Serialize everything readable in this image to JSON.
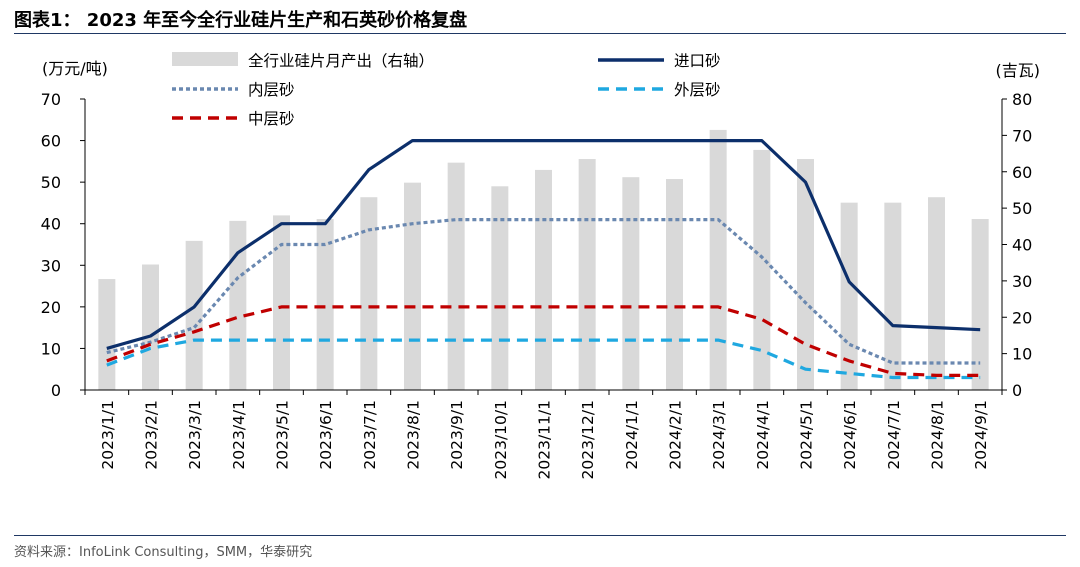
{
  "figure": {
    "title": "图表1： 2023 年至今全行业硅片生产和石英砂价格复盘",
    "source": "资料来源：InfoLink Consulting，SMM，华泰研究"
  },
  "chart_data": {
    "type": "bar+line",
    "categories": [
      "2023/1/1",
      "2023/2/1",
      "2023/3/1",
      "2023/4/1",
      "2023/5/1",
      "2023/6/1",
      "2023/7/1",
      "2023/8/1",
      "2023/9/1",
      "2023/10/1",
      "2023/11/1",
      "2023/12/1",
      "2024/1/1",
      "2024/2/1",
      "2024/3/1",
      "2024/4/1",
      "2024/5/1",
      "2024/6/1",
      "2024/7/1",
      "2024/8/1",
      "2024/9/1"
    ],
    "left_axis": {
      "label": "(万元/吨)",
      "ylim": [
        0,
        70
      ],
      "ticks": [
        0,
        10,
        20,
        30,
        40,
        50,
        60,
        70
      ]
    },
    "right_axis": {
      "label": "(吉瓦)",
      "ylim": [
        0,
        80
      ],
      "ticks": [
        0,
        10,
        20,
        30,
        40,
        50,
        60,
        70,
        80
      ]
    },
    "series": [
      {
        "name": "全行业硅片月产出（右轴）",
        "kind": "bar",
        "axis": "right",
        "color": "#d9d9d9",
        "values": [
          30.5,
          34.5,
          41,
          46.5,
          48,
          47,
          53,
          57,
          62.5,
          56,
          60.5,
          63.5,
          58.5,
          58,
          71.5,
          66,
          63.5,
          51.5,
          51.5,
          53,
          47
        ]
      },
      {
        "name": "进口砂",
        "kind": "line",
        "style": "solid",
        "axis": "left",
        "color": "#0c2f6b",
        "values": [
          10,
          13,
          20,
          33,
          40,
          40,
          53,
          60,
          60,
          60,
          60,
          60,
          60,
          60,
          60,
          60,
          50,
          26,
          15.5,
          15,
          14.5
        ]
      },
      {
        "name": "内层砂",
        "kind": "line",
        "style": "dotted",
        "axis": "left",
        "color": "#6a88b0",
        "values": [
          9,
          11.5,
          15,
          27,
          35,
          35,
          38.5,
          40,
          41,
          41,
          41,
          41,
          41,
          41,
          41,
          32,
          21,
          11,
          6.5,
          6.5,
          6.5
        ]
      },
      {
        "name": "外层砂",
        "kind": "line",
        "style": "dashed",
        "axis": "left",
        "color": "#1fa8e0",
        "values": [
          6,
          10,
          12,
          12,
          12,
          12,
          12,
          12,
          12,
          12,
          12,
          12,
          12,
          12,
          12,
          9.5,
          5,
          4,
          3,
          3,
          3
        ]
      },
      {
        "name": "中层砂",
        "kind": "line",
        "style": "dashed",
        "axis": "left",
        "color": "#c00000",
        "values": [
          7,
          11,
          14,
          17.5,
          20,
          20,
          20,
          20,
          20,
          20,
          20,
          20,
          20,
          20,
          20,
          17,
          11,
          7,
          4,
          3.5,
          3.5
        ]
      }
    ],
    "grid": false,
    "legend": "top"
  }
}
